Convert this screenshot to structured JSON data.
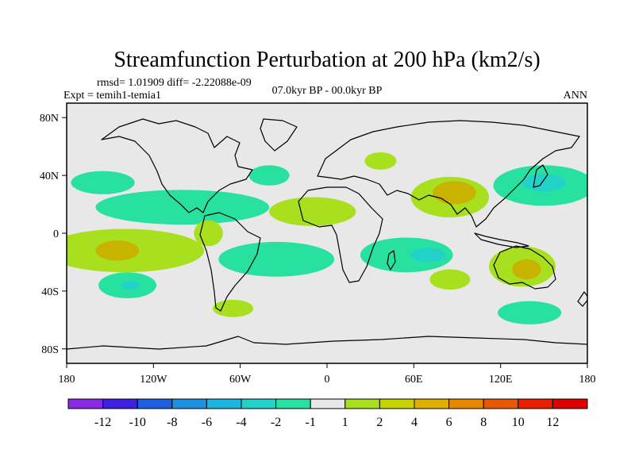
{
  "chart_data": {
    "type": "contour-map",
    "title": "Streamfunction Perturbation at 200 hPa (km2/s)",
    "subtitle_left_line1": "rmsd= 1.01909 diff= -2.22088e-09",
    "subtitle_left_line2": "Expt = temih1-temia1",
    "subtitle_center": "07.0kyr BP - 00.0kyr BP",
    "subtitle_right": "ANN",
    "x_ticks": [
      "180",
      "120W",
      "60W",
      "0",
      "60E",
      "120E",
      "180"
    ],
    "x_tick_values": [
      -180,
      -120,
      -60,
      0,
      60,
      120,
      180
    ],
    "y_ticks": [
      "80N",
      "40N",
      "0",
      "40S",
      "80S"
    ],
    "y_tick_values": [
      80,
      40,
      0,
      -40,
      -80
    ],
    "xlim": [
      -180,
      180
    ],
    "ylim": [
      -90,
      90
    ],
    "colorbar": {
      "levels": [
        "-12",
        "-10",
        "-8",
        "-6",
        "-4",
        "-2",
        "-1",
        "1",
        "2",
        "4",
        "6",
        "8",
        "10",
        "12"
      ],
      "colors": [
        "#8a2be2",
        "#4020e0",
        "#1e5fe0",
        "#1e90e0",
        "#1cb4e0",
        "#22d2c8",
        "#28e0a0",
        "#e8e8e8",
        "#a8e020",
        "#c8d400",
        "#e0b000",
        "#e88800",
        "#e85800",
        "#e82000",
        "#e00000"
      ]
    },
    "regions": [
      {
        "name": "n-pacific-neg",
        "level": -1,
        "lon": -155,
        "lat": 35,
        "rx": 22,
        "ry": 8
      },
      {
        "name": "n-pacific-neg-east",
        "level": -1,
        "lon": -100,
        "lat": 18,
        "rx": 60,
        "ry": 12
      },
      {
        "name": "n-atlantic-neg",
        "level": -1,
        "lon": -40,
        "lat": 40,
        "rx": 14,
        "ry": 7
      },
      {
        "name": "s-pacific-pos",
        "level": 1,
        "lon": -140,
        "lat": -12,
        "rx": 55,
        "ry": 15
      },
      {
        "name": "s-pacific-pos-core",
        "level": 2,
        "lon": -145,
        "lat": -12,
        "rx": 15,
        "ry": 7
      },
      {
        "name": "s-pacific-neg-south",
        "level": -1,
        "lon": -138,
        "lat": -36,
        "rx": 20,
        "ry": 9
      },
      {
        "name": "s-pacific-neg-core",
        "level": -2,
        "lon": -136,
        "lat": -36,
        "rx": 6,
        "ry": 3
      },
      {
        "name": "s-atlantic-neg",
        "level": -1,
        "lon": -35,
        "lat": -18,
        "rx": 40,
        "ry": 12
      },
      {
        "name": "central-america-pos",
        "level": 1,
        "lon": -82,
        "lat": 0,
        "rx": 10,
        "ry": 9
      },
      {
        "name": "patagonia-pos",
        "level": 1,
        "lon": -65,
        "lat": -52,
        "rx": 14,
        "ry": 6
      },
      {
        "name": "n-africa-pos",
        "level": 1,
        "lon": -10,
        "lat": 15,
        "rx": 30,
        "ry": 10
      },
      {
        "name": "europe-pos",
        "level": 1,
        "lon": 37,
        "lat": 50,
        "rx": 11,
        "ry": 6
      },
      {
        "name": "s-indian-neg",
        "level": -1,
        "lon": 55,
        "lat": -15,
        "rx": 32,
        "ry": 12
      },
      {
        "name": "s-indian-neg-core",
        "level": -2,
        "lon": 70,
        "lat": -15,
        "rx": 12,
        "ry": 5
      },
      {
        "name": "s-indian-pos",
        "level": 1,
        "lon": 85,
        "lat": -32,
        "rx": 14,
        "ry": 7
      },
      {
        "name": "asia-pos",
        "level": 1,
        "lon": 85,
        "lat": 25,
        "rx": 27,
        "ry": 14
      },
      {
        "name": "asia-pos-core",
        "level": 2,
        "lon": 88,
        "lat": 28,
        "rx": 15,
        "ry": 8
      },
      {
        "name": "w-pacific-neg",
        "level": -1,
        "lon": 150,
        "lat": 33,
        "rx": 35,
        "ry": 14
      },
      {
        "name": "w-pacific-neg-core",
        "level": -2,
        "lon": 150,
        "lat": 35,
        "rx": 15,
        "ry": 6
      },
      {
        "name": "australia-pos",
        "level": 1,
        "lon": 135,
        "lat": -23,
        "rx": 23,
        "ry": 14
      },
      {
        "name": "australia-pos-core",
        "level": 2,
        "lon": 138,
        "lat": -25,
        "rx": 10,
        "ry": 7
      },
      {
        "name": "s-pacific-neg-east",
        "level": -1,
        "lon": 140,
        "lat": -55,
        "rx": 22,
        "ry": 8
      }
    ]
  }
}
